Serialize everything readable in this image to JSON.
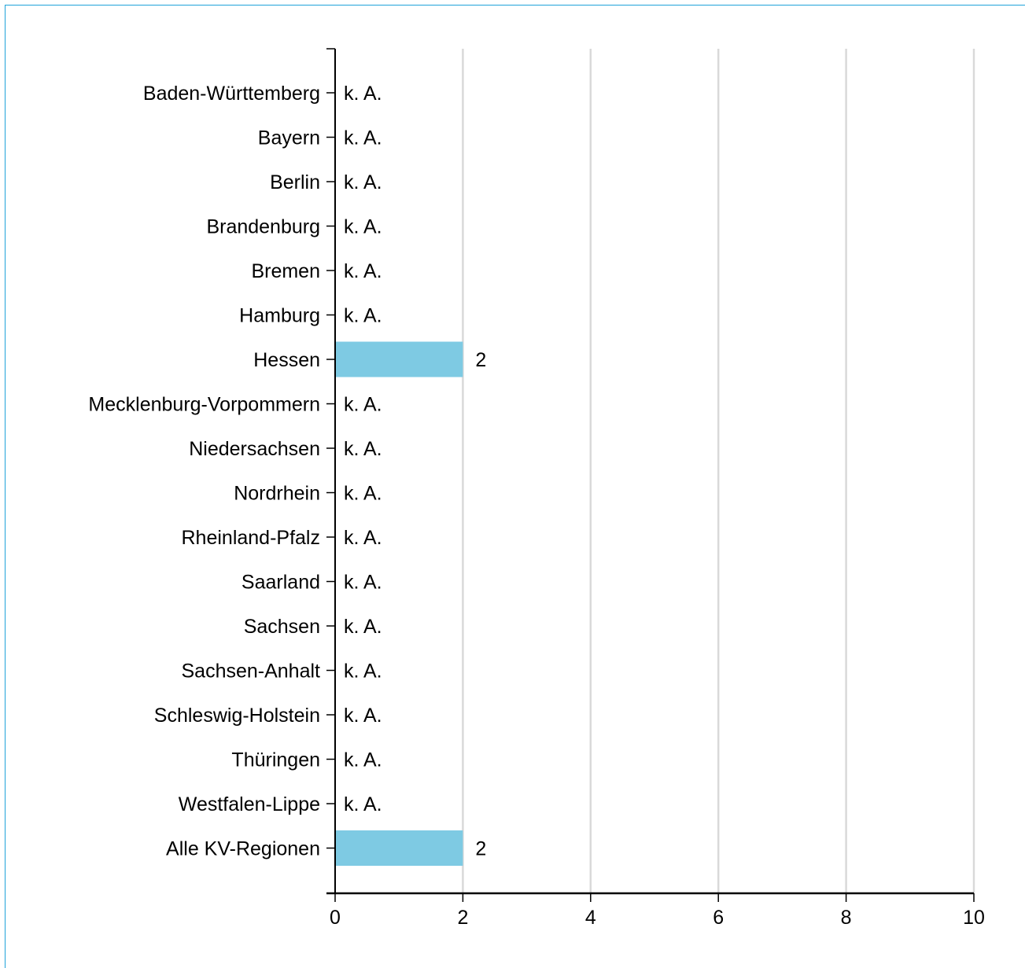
{
  "chart_data": {
    "type": "bar",
    "orientation": "horizontal",
    "categories": [
      "Baden-Württemberg",
      "Bayern",
      "Berlin",
      "Brandenburg",
      "Bremen",
      "Hamburg",
      "Hessen",
      "Mecklenburg-Vorpommern",
      "Niedersachsen",
      "Nordrhein",
      "Rheinland-Pfalz",
      "Saarland",
      "Sachsen",
      "Sachsen-Anhalt",
      "Schleswig-Holstein",
      "Thüringen",
      "Westfalen-Lippe",
      "Alle KV-Regionen"
    ],
    "values": [
      null,
      null,
      null,
      null,
      null,
      null,
      2,
      null,
      null,
      null,
      null,
      null,
      null,
      null,
      null,
      null,
      null,
      2
    ],
    "value_labels": [
      "k. A.",
      "k. A.",
      "k. A.",
      "k. A.",
      "k. A.",
      "k. A.",
      "2",
      "k. A.",
      "k. A.",
      "k. A.",
      "k. A.",
      "k. A.",
      "k. A.",
      "k. A.",
      "k. A.",
      "k. A.",
      "k. A.",
      "2"
    ],
    "xlim": [
      0,
      10
    ],
    "xticks": [
      0,
      2,
      4,
      6,
      8,
      10
    ],
    "grid": "vertical",
    "bar_color": "#7ecae3",
    "grid_color": "#d9d9d9",
    "title": "",
    "xlabel": "",
    "ylabel": ""
  }
}
